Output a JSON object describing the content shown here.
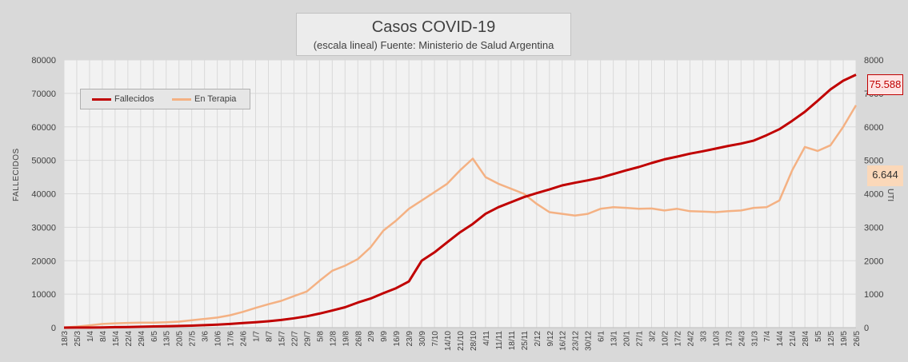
{
  "header": {
    "title": "Casos COVID-19",
    "subtitle": "(escala lineal) Fuente: Ministerio de Salud Argentina"
  },
  "axes": {
    "left_label": "FALLECIDOS",
    "right_label": "UTI"
  },
  "legend": {
    "fallecidos": "Fallecidos",
    "terapia": "En Terapia"
  },
  "callouts": {
    "fallecidos_last": "75.588",
    "terapia_last": "6.644"
  },
  "colors": {
    "fallecidos": "#c00000",
    "terapia": "#f4b183",
    "background": "#d9d9d9",
    "plot": "#f2f2f2",
    "grid": "#d9d9d9"
  },
  "chart_data": {
    "type": "line",
    "title": "Casos COVID-19",
    "subtitle": "(escala lineal) Fuente: Ministerio de Salud Argentina",
    "xlabel": "",
    "ylabel": "FALLECIDOS",
    "y2label": "UTI",
    "ylim": [
      0,
      80000
    ],
    "y2lim": [
      0,
      8000
    ],
    "yticks": [
      "0",
      "10000",
      "20000",
      "30000",
      "40000",
      "50000",
      "60000",
      "70000",
      "80000"
    ],
    "y2ticks": [
      "0",
      "1000",
      "2000",
      "3000",
      "4000",
      "5000",
      "6000",
      "7000",
      "8000"
    ],
    "grid": true,
    "legend_position": "top-left",
    "categories": [
      "18/3",
      "25/3",
      "1/4",
      "8/4",
      "15/4",
      "22/4",
      "29/4",
      "6/5",
      "13/5",
      "20/5",
      "27/5",
      "3/6",
      "10/6",
      "17/6",
      "24/6",
      "1/7",
      "8/7",
      "15/7",
      "22/7",
      "29/7",
      "5/8",
      "12/8",
      "19/8",
      "26/8",
      "2/9",
      "9/9",
      "16/9",
      "23/9",
      "30/9",
      "7/10",
      "14/10",
      "21/10",
      "28/10",
      "4/11",
      "11/11",
      "18/11",
      "25/11",
      "2/12",
      "9/12",
      "16/12",
      "23/12",
      "30/12",
      "6/1",
      "13/1",
      "20/1",
      "27/1",
      "3/2",
      "10/2",
      "17/2",
      "24/2",
      "3/3",
      "10/3",
      "17/3",
      "24/3",
      "31/3",
      "7/4",
      "14/4",
      "21/4",
      "28/4",
      "5/5",
      "12/5",
      "19/5",
      "26/5"
    ],
    "series": [
      {
        "name": "Fallecidos",
        "axis": "left",
        "values": [
          0,
          12,
          30,
          80,
          150,
          200,
          260,
          350,
          420,
          500,
          600,
          750,
          900,
          1100,
          1350,
          1600,
          1900,
          2300,
          2800,
          3400,
          4200,
          5100,
          6100,
          7500,
          8700,
          10300,
          11800,
          13800,
          20000,
          22500,
          25500,
          28500,
          31000,
          34000,
          36000,
          37500,
          39000,
          40200,
          41300,
          42500,
          43300,
          44000,
          44800,
          45900,
          47000,
          48000,
          49200,
          50300,
          51100,
          52000,
          52700,
          53500,
          54300,
          55000,
          55900,
          57500,
          59300,
          61800,
          64500,
          67800,
          71200,
          73800,
          75588
        ]
      },
      {
        "name": "En Terapia",
        "axis": "right",
        "values": [
          5,
          30,
          70,
          110,
          130,
          140,
          150,
          150,
          160,
          180,
          220,
          260,
          300,
          370,
          470,
          590,
          700,
          800,
          940,
          1080,
          1400,
          1700,
          1850,
          2050,
          2400,
          2900,
          3200,
          3550,
          3800,
          4050,
          4300,
          4700,
          5050,
          4500,
          4300,
          4150,
          4000,
          3700,
          3450,
          3400,
          3350,
          3400,
          3550,
          3600,
          3580,
          3550,
          3560,
          3500,
          3550,
          3480,
          3470,
          3450,
          3480,
          3500,
          3580,
          3600,
          3800,
          4700,
          5400,
          5280,
          5450,
          6000,
          6644
        ]
      }
    ]
  }
}
